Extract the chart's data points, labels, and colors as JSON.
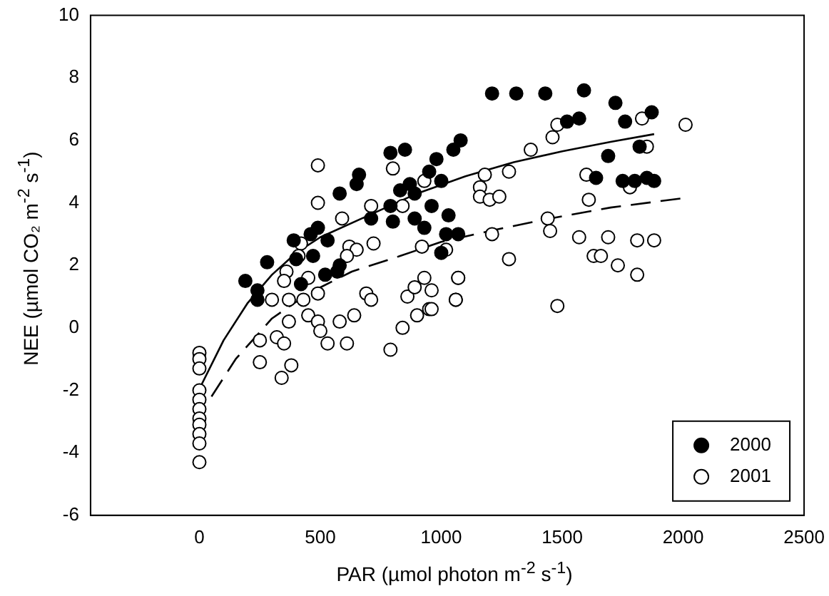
{
  "chart_data": {
    "type": "scatter",
    "xlabel": "PAR (µmol photon m$^{-2}$ s$^{-1}$)",
    "ylabel": "NEE (µmol CO₂ m$^{-2}$ s$^{-1}$)",
    "xlim": [
      -450,
      2500
    ],
    "xticks": [
      0,
      500,
      1000,
      1500,
      2000,
      2500
    ],
    "ylim": [
      -6,
      10
    ],
    "yticks": [
      -6,
      -4,
      -2,
      0,
      2,
      4,
      6,
      8,
      10
    ],
    "grid": false,
    "legend": "bottom right",
    "marker": "circle",
    "series": [
      {
        "name": "2000",
        "color": "#000000",
        "x": [
          190,
          280,
          240,
          240,
          390,
          460,
          490,
          530,
          470,
          400,
          420,
          520,
          570,
          580,
          580,
          650,
          660,
          790,
          850,
          710,
          800,
          790,
          830,
          870,
          890,
          980,
          1050,
          960,
          1030,
          890,
          930,
          1020,
          1070,
          1000,
          1210,
          1310,
          1430,
          1590,
          1720,
          1760,
          1870,
          1520,
          1570,
          1080,
          950,
          1000,
          1690,
          1820,
          1640,
          1750,
          1800,
          1850,
          1880
        ],
        "values": [
          1.5,
          2.1,
          1.2,
          0.9,
          2.8,
          3.0,
          3.2,
          2.8,
          2.3,
          2.2,
          1.4,
          1.7,
          1.8,
          2.0,
          4.3,
          4.6,
          4.9,
          5.6,
          5.7,
          3.5,
          3.4,
          3.9,
          4.4,
          4.6,
          4.3,
          5.4,
          5.7,
          3.9,
          3.6,
          3.5,
          3.2,
          3.0,
          3.0,
          2.4,
          7.5,
          7.5,
          7.5,
          7.6,
          7.2,
          6.6,
          6.9,
          6.6,
          6.7,
          6.0,
          5.0,
          4.7,
          5.5,
          5.8,
          4.8,
          4.7,
          4.7,
          4.8,
          4.7
        ]
      },
      {
        "name": "2001",
        "color": "#ffffff",
        "x": [
          0,
          0,
          0,
          0,
          0,
          0,
          0,
          0,
          0,
          0,
          0,
          490,
          490,
          590,
          710,
          800,
          840,
          930,
          420,
          410,
          360,
          350,
          450,
          620,
          650,
          610,
          720,
          300,
          370,
          430,
          490,
          450,
          490,
          500,
          580,
          640,
          530,
          610,
          370,
          320,
          350,
          250,
          250,
          380,
          340,
          790,
          690,
          710,
          840,
          860,
          890,
          930,
          960,
          900,
          950,
          1060,
          1070,
          1020,
          920,
          1480,
          1830,
          2010,
          1460,
          1370,
          1850,
          1180,
          1280,
          1160,
          1160,
          1200,
          1240,
          1600,
          1780,
          1610,
          1440,
          1450,
          1210,
          1570,
          1690,
          1810,
          1880,
          1630,
          1660,
          1730,
          1810,
          1280,
          1480,
          1070,
          1060,
          960
        ],
        "values": [
          -0.8,
          -1.0,
          -1.3,
          -2.0,
          -2.3,
          -2.6,
          -2.9,
          -3.1,
          -3.4,
          -3.7,
          -4.3,
          5.2,
          4.0,
          3.5,
          3.9,
          5.1,
          3.9,
          4.7,
          2.7,
          2.3,
          1.8,
          1.5,
          1.6,
          2.6,
          2.5,
          2.3,
          2.7,
          0.9,
          0.9,
          0.9,
          1.1,
          0.4,
          0.2,
          -0.1,
          0.2,
          0.4,
          -0.5,
          -0.5,
          0.2,
          -0.3,
          -0.5,
          -0.4,
          -1.1,
          -1.2,
          -1.6,
          -0.7,
          1.1,
          0.9,
          0.0,
          1.0,
          1.3,
          1.6,
          1.2,
          0.4,
          0.6,
          0.9,
          1.6,
          2.5,
          2.6,
          6.5,
          6.7,
          6.5,
          6.1,
          5.7,
          5.8,
          4.9,
          5.0,
          4.5,
          4.2,
          4.1,
          4.2,
          4.9,
          4.5,
          4.1,
          3.5,
          3.1,
          3.0,
          2.9,
          2.9,
          2.8,
          2.8,
          2.3,
          2.3,
          2.0,
          1.7,
          2.2,
          0.7,
          1.6,
          0.9,
          0.6
        ]
      },
      {
        "type": "line",
        "color": "#000000",
        "marker": "none",
        "line_style": "solid",
        "x": [
          10,
          100,
          200,
          300,
          400,
          500,
          700,
          900,
          1100,
          1300,
          1500,
          1700,
          1880
        ],
        "values": [
          -1.8,
          -0.4,
          0.8,
          1.7,
          2.4,
          2.9,
          3.6,
          4.3,
          4.85,
          5.3,
          5.65,
          5.95,
          6.2
        ]
      },
      {
        "type": "line",
        "color": "#000000",
        "marker": "none",
        "line_style": "dashed",
        "x": [
          50,
          150,
          300,
          450,
          630,
          830,
          1000,
          1200,
          1450,
          1700,
          2000
        ],
        "values": [
          -2.2,
          -1.0,
          0.3,
          1.1,
          1.8,
          2.3,
          2.75,
          3.1,
          3.5,
          3.85,
          4.15
        ]
      }
    ]
  }
}
